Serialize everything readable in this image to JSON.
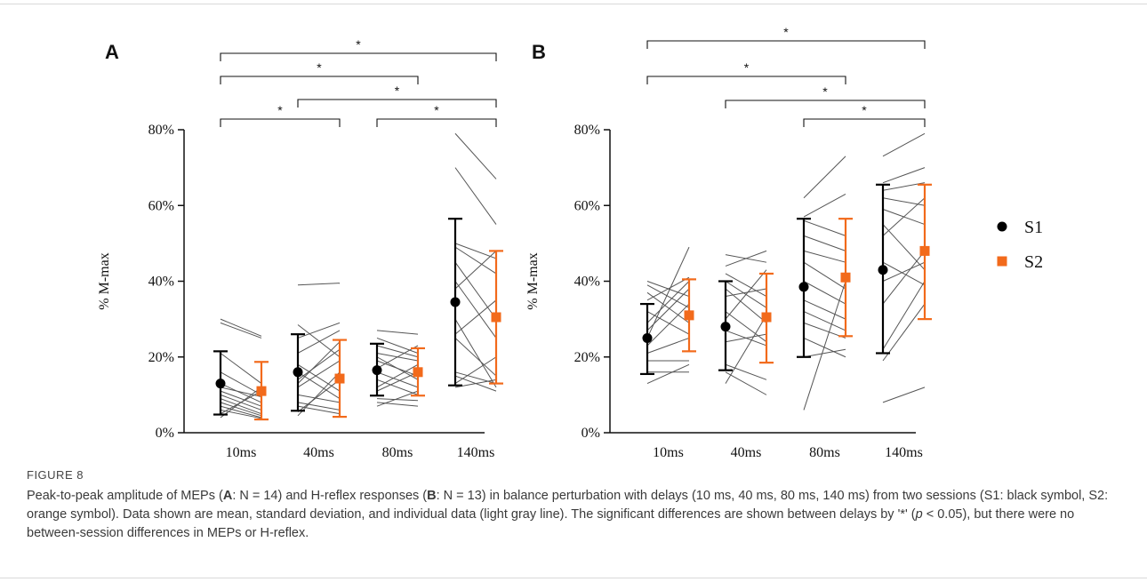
{
  "colors": {
    "s1": "#000000",
    "s2": "#f26a1b",
    "individual": "#555555"
  },
  "legend": [
    {
      "label": "S1",
      "color": "#000000",
      "marker": "circle"
    },
    {
      "label": "S2",
      "color": "#f26a1b",
      "marker": "square"
    }
  ],
  "caption": {
    "figure_label": "FIGURE 8",
    "t1": "Peak-to-peak amplitude of MEPs (",
    "b1": "A",
    "t2": ": N = 14) and H-reflex responses (",
    "b2": "B",
    "t3": ": N = 13) in balance perturbation with delays (10 ms, 40 ms, 80 ms, 140 ms) from two sessions (S1: black symbol, S2: orange symbol). Data shown are mean, standard deviation, and individual data (light gray line). The significant differences are shown between delays by '*' (",
    "p": "p",
    "t4": " < 0.05), but there were no between-session differences in MEPs or H-reflex."
  },
  "chart_data": [
    {
      "panel": "A",
      "type": "scatter",
      "categories": [
        "10ms",
        "40ms",
        "80ms",
        "140ms"
      ],
      "ylabel": "% M-max",
      "ylim": [
        0,
        80
      ],
      "yticks": [
        "0%",
        "20%",
        "40%",
        "60%",
        "80%"
      ],
      "series": [
        {
          "name": "S1",
          "mean": [
            13,
            16,
            16.5,
            34.5
          ],
          "sd_low": [
            4.8,
            5.8,
            9.8,
            12.5
          ],
          "sd_high": [
            21.5,
            26,
            23.5,
            56.5
          ]
        },
        {
          "name": "S2",
          "mean": [
            11,
            14.3,
            16,
            30.5
          ],
          "sd_low": [
            3.5,
            4.2,
            9.8,
            13
          ],
          "sd_high": [
            18.7,
            24.5,
            22.3,
            48
          ]
        }
      ],
      "individual_lines": [
        [
          [
            0,
            30
          ],
          [
            1,
            25.5
          ]
        ],
        [
          [
            0,
            29
          ],
          [
            1,
            25
          ]
        ],
        [
          [
            0,
            21
          ],
          [
            1,
            13
          ]
        ],
        [
          [
            0,
            16
          ],
          [
            1,
            10
          ]
        ],
        [
          [
            0,
            13
          ],
          [
            1,
            8
          ]
        ],
        [
          [
            0,
            12
          ],
          [
            1,
            9.5
          ]
        ],
        [
          [
            0,
            11
          ],
          [
            1,
            7
          ]
        ],
        [
          [
            0,
            10
          ],
          [
            1,
            6
          ]
        ],
        [
          [
            0,
            9
          ],
          [
            1,
            5
          ]
        ],
        [
          [
            0,
            8
          ],
          [
            1,
            4.5
          ]
        ],
        [
          [
            0,
            7
          ],
          [
            1,
            4
          ]
        ],
        [
          [
            0,
            6
          ],
          [
            1,
            3.8
          ]
        ],
        [
          [
            0,
            5
          ],
          [
            1,
            11
          ]
        ],
        [
          [
            0,
            4
          ],
          [
            1,
            12
          ]
        ],
        [
          [
            2,
            39
          ],
          [
            3,
            39.5
          ]
        ],
        [
          [
            2,
            28.5
          ],
          [
            3,
            20
          ]
        ],
        [
          [
            2,
            25
          ],
          [
            3,
            29
          ]
        ],
        [
          [
            2,
            21
          ],
          [
            3,
            27
          ]
        ],
        [
          [
            2,
            18
          ],
          [
            3,
            11
          ]
        ],
        [
          [
            2,
            16
          ],
          [
            3,
            9
          ]
        ],
        [
          [
            2,
            14
          ],
          [
            3,
            22
          ]
        ],
        [
          [
            2,
            12
          ],
          [
            3,
            19
          ]
        ],
        [
          [
            2,
            10
          ],
          [
            3,
            8
          ]
        ],
        [
          [
            2,
            8
          ],
          [
            3,
            6
          ]
        ],
        [
          [
            2,
            7
          ],
          [
            3,
            5
          ]
        ],
        [
          [
            2,
            5.5
          ],
          [
            3,
            14
          ]
        ],
        [
          [
            2,
            4.5
          ],
          [
            3,
            16
          ]
        ],
        [
          [
            2,
            13
          ],
          [
            3,
            24
          ]
        ],
        [
          [
            4,
            27
          ],
          [
            5,
            26
          ]
        ],
        [
          [
            4,
            25
          ],
          [
            5,
            21
          ]
        ],
        [
          [
            4,
            23
          ],
          [
            5,
            20
          ]
        ],
        [
          [
            4,
            21
          ],
          [
            5,
            19
          ]
        ],
        [
          [
            4,
            19
          ],
          [
            5,
            15
          ]
        ],
        [
          [
            4,
            17
          ],
          [
            5,
            23
          ]
        ],
        [
          [
            4,
            16
          ],
          [
            5,
            12
          ]
        ],
        [
          [
            4,
            14
          ],
          [
            5,
            10
          ]
        ],
        [
          [
            4,
            12
          ],
          [
            5,
            18
          ]
        ],
        [
          [
            4,
            11
          ],
          [
            5,
            16
          ]
        ],
        [
          [
            4,
            9
          ],
          [
            5,
            8.5
          ]
        ],
        [
          [
            4,
            8
          ],
          [
            5,
            7
          ]
        ],
        [
          [
            4,
            7
          ],
          [
            5,
            11
          ]
        ],
        [
          [
            4,
            20
          ],
          [
            5,
            14
          ]
        ],
        [
          [
            6,
            79
          ],
          [
            7,
            67
          ]
        ],
        [
          [
            6,
            70
          ],
          [
            7,
            55
          ]
        ],
        [
          [
            6,
            50
          ],
          [
            7,
            46
          ]
        ],
        [
          [
            6,
            49
          ],
          [
            7,
            42
          ]
        ],
        [
          [
            6,
            45
          ],
          [
            7,
            30
          ]
        ],
        [
          [
            6,
            40
          ],
          [
            7,
            25
          ]
        ],
        [
          [
            6,
            38
          ],
          [
            7,
            48
          ]
        ],
        [
          [
            6,
            30
          ],
          [
            7,
            12
          ]
        ],
        [
          [
            6,
            26
          ],
          [
            7,
            35
          ]
        ],
        [
          [
            6,
            25
          ],
          [
            7,
            15
          ]
        ],
        [
          [
            6,
            16
          ],
          [
            7,
            13
          ]
        ],
        [
          [
            6,
            15
          ],
          [
            7,
            11
          ]
        ],
        [
          [
            6,
            13
          ],
          [
            7,
            20
          ]
        ],
        [
          [
            6,
            12
          ],
          [
            7,
            14
          ]
        ]
      ],
      "significance": [
        {
          "from": 0,
          "to": 3,
          "label": "*"
        },
        {
          "from": 0,
          "to": 2,
          "label": "*"
        },
        {
          "from": 1,
          "to": 3,
          "label": "*"
        },
        {
          "from": 0,
          "to": 1,
          "label": "*"
        },
        {
          "from": 2,
          "to": 3,
          "label": "*"
        }
      ]
    },
    {
      "panel": "B",
      "type": "scatter",
      "categories": [
        "10ms",
        "40ms",
        "80ms",
        "140ms"
      ],
      "ylabel": "% M-max",
      "ylim": [
        0,
        80
      ],
      "yticks": [
        "0%",
        "20%",
        "40%",
        "60%",
        "80%"
      ],
      "series": [
        {
          "name": "S1",
          "mean": [
            25,
            28,
            38.5,
            43
          ],
          "sd_low": [
            15.5,
            16.5,
            20,
            21
          ],
          "sd_high": [
            34,
            40,
            56.5,
            65.5
          ]
        },
        {
          "name": "S2",
          "mean": [
            31,
            30.5,
            41,
            48
          ],
          "sd_low": [
            21.5,
            18.5,
            25.5,
            30
          ],
          "sd_high": [
            40.5,
            42,
            56.5,
            65.5
          ]
        }
      ],
      "individual_lines": [
        [
          [
            0,
            40
          ],
          [
            1,
            36
          ]
        ],
        [
          [
            0,
            39
          ],
          [
            1,
            33
          ]
        ],
        [
          [
            0,
            37
          ],
          [
            1,
            29
          ]
        ],
        [
          [
            0,
            35
          ],
          [
            1,
            41
          ]
        ],
        [
          [
            0,
            32
          ],
          [
            1,
            26
          ]
        ],
        [
          [
            0,
            29
          ],
          [
            1,
            40
          ]
        ],
        [
          [
            0,
            27
          ],
          [
            1,
            38
          ]
        ],
        [
          [
            0,
            25
          ],
          [
            1,
            49
          ]
        ],
        [
          [
            0,
            23
          ],
          [
            1,
            34
          ]
        ],
        [
          [
            0,
            21
          ],
          [
            1,
            25
          ]
        ],
        [
          [
            0,
            19
          ],
          [
            1,
            19
          ]
        ],
        [
          [
            0,
            16
          ],
          [
            1,
            16
          ]
        ],
        [
          [
            0,
            13
          ],
          [
            1,
            18
          ]
        ],
        [
          [
            2,
            47
          ],
          [
            3,
            45
          ]
        ],
        [
          [
            2,
            44
          ],
          [
            3,
            48
          ]
        ],
        [
          [
            2,
            42
          ],
          [
            3,
            36
          ]
        ],
        [
          [
            2,
            40
          ],
          [
            3,
            33
          ]
        ],
        [
          [
            2,
            38
          ],
          [
            3,
            29
          ]
        ],
        [
          [
            2,
            36
          ],
          [
            3,
            38
          ]
        ],
        [
          [
            2,
            32
          ],
          [
            3,
            24
          ]
        ],
        [
          [
            2,
            30
          ],
          [
            3,
            43
          ]
        ],
        [
          [
            2,
            27
          ],
          [
            3,
            23
          ]
        ],
        [
          [
            2,
            24
          ],
          [
            3,
            26
          ]
        ],
        [
          [
            2,
            18
          ],
          [
            3,
            14
          ]
        ],
        [
          [
            2,
            16
          ],
          [
            3,
            10
          ]
        ],
        [
          [
            2,
            13
          ],
          [
            3,
            31
          ]
        ],
        [
          [
            4,
            62
          ],
          [
            5,
            73
          ]
        ],
        [
          [
            4,
            57
          ],
          [
            5,
            63
          ]
        ],
        [
          [
            4,
            56
          ],
          [
            5,
            52
          ]
        ],
        [
          [
            4,
            52
          ],
          [
            5,
            48
          ]
        ],
        [
          [
            4,
            48
          ],
          [
            5,
            45
          ]
        ],
        [
          [
            4,
            45
          ],
          [
            5,
            38
          ]
        ],
        [
          [
            4,
            40
          ],
          [
            5,
            34
          ]
        ],
        [
          [
            4,
            35
          ],
          [
            5,
            30
          ]
        ],
        [
          [
            4,
            32
          ],
          [
            5,
            27
          ]
        ],
        [
          [
            4,
            29
          ],
          [
            5,
            25
          ]
        ],
        [
          [
            4,
            25
          ],
          [
            5,
            20
          ]
        ],
        [
          [
            4,
            20
          ],
          [
            5,
            22
          ]
        ],
        [
          [
            4,
            6
          ],
          [
            5,
            40
          ]
        ],
        [
          [
            6,
            73
          ],
          [
            7,
            79
          ]
        ],
        [
          [
            6,
            66
          ],
          [
            7,
            70
          ]
        ],
        [
          [
            6,
            64
          ],
          [
            7,
            66
          ]
        ],
        [
          [
            6,
            62
          ],
          [
            7,
            60
          ]
        ],
        [
          [
            6,
            59
          ],
          [
            7,
            55
          ]
        ],
        [
          [
            6,
            55
          ],
          [
            7,
            43
          ]
        ],
        [
          [
            6,
            52
          ],
          [
            7,
            62
          ]
        ],
        [
          [
            6,
            45
          ],
          [
            7,
            39
          ]
        ],
        [
          [
            6,
            40
          ],
          [
            7,
            45
          ]
        ],
        [
          [
            6,
            34
          ],
          [
            7,
            48
          ]
        ],
        [
          [
            6,
            22
          ],
          [
            7,
            40
          ]
        ],
        [
          [
            6,
            19
          ],
          [
            7,
            34
          ]
        ],
        [
          [
            6,
            8
          ],
          [
            7,
            12
          ]
        ]
      ],
      "significance": [
        {
          "from": 0,
          "to": 3,
          "label": "*"
        },
        {
          "from": 0,
          "to": 2,
          "label": "*"
        },
        {
          "from": 1,
          "to": 3,
          "label": "*"
        },
        {
          "from": 2,
          "to": 3,
          "label": "*"
        }
      ]
    }
  ]
}
